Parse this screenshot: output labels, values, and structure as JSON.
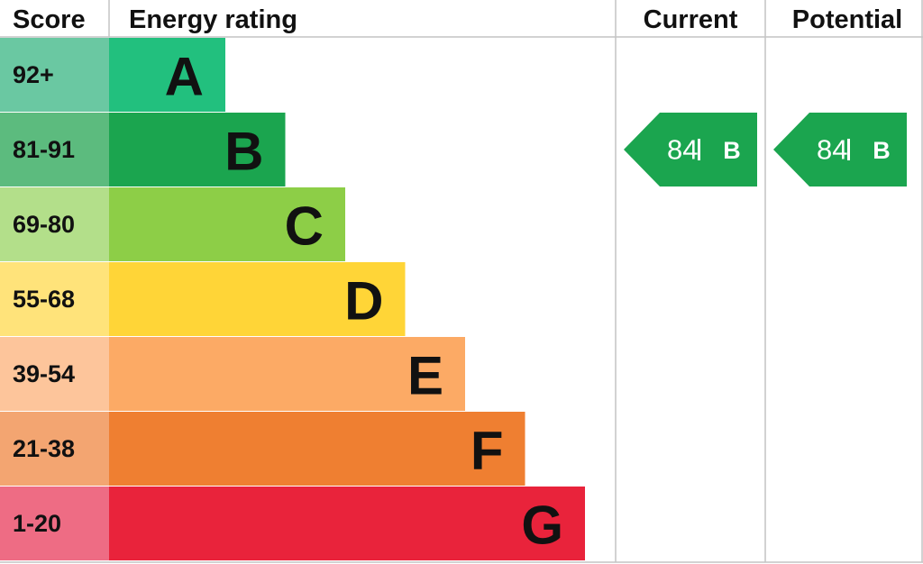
{
  "header": {
    "score": "Score",
    "rating": "Energy rating",
    "current": "Current",
    "potential": "Potential"
  },
  "bands": [
    {
      "score": "92+",
      "letter": "A",
      "color": "#22c07e",
      "score_color": "#6ac8a2"
    },
    {
      "score": "81-91",
      "letter": "B",
      "color": "#1ba54f",
      "score_color": "#5cbb7e"
    },
    {
      "score": "69-80",
      "letter": "C",
      "color": "#8dce47",
      "score_color": "#b3df8a"
    },
    {
      "score": "55-68",
      "letter": "D",
      "color": "#ffd537",
      "score_color": "#ffe37a"
    },
    {
      "score": "39-54",
      "letter": "E",
      "color": "#fcaa65",
      "score_color": "#fdc59b"
    },
    {
      "score": "21-38",
      "letter": "F",
      "color": "#ef7f31",
      "score_color": "#f3a571"
    },
    {
      "score": "1-20",
      "letter": "G",
      "color": "#e9233b",
      "score_color": "#ee6c84"
    }
  ],
  "current": {
    "value": 84,
    "letter": "B"
  },
  "potential": {
    "value": 84,
    "letter": "B"
  }
}
